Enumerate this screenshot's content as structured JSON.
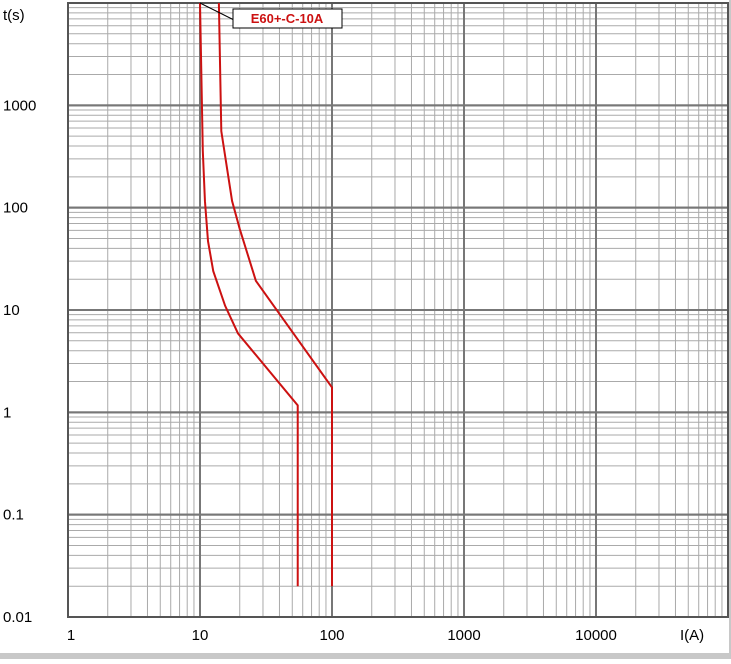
{
  "chart_data": {
    "type": "line",
    "log_x": true,
    "log_y": true,
    "grid": true,
    "minor_grid": true,
    "x_label": "I(A)",
    "y_label": "t(s)",
    "annotation": "E60+-C-10A",
    "xlim": [
      1,
      100000
    ],
    "ylim": [
      0.01,
      10000
    ],
    "xticks": [
      1,
      10,
      100,
      1000,
      10000
    ],
    "yticks": [
      0.01,
      0.1,
      1,
      10,
      100,
      1000
    ],
    "series": [
      {
        "color": "#cc1111",
        "x": [
          10,
          10.5,
          10.9,
          11.5,
          12.6,
          15.5,
          19.4,
          55,
          55
        ],
        "values": [
          10000,
          360,
          116,
          47,
          24,
          11,
          5.9,
          1.17,
          0.02
        ]
      },
      {
        "color": "#cc1111",
        "x": [
          13.9,
          14.5,
          17.5,
          20,
          26.5,
          100,
          100
        ],
        "values": [
          10000,
          560,
          116,
          62,
          19.3,
          1.75,
          0.02
        ]
      }
    ]
  }
}
